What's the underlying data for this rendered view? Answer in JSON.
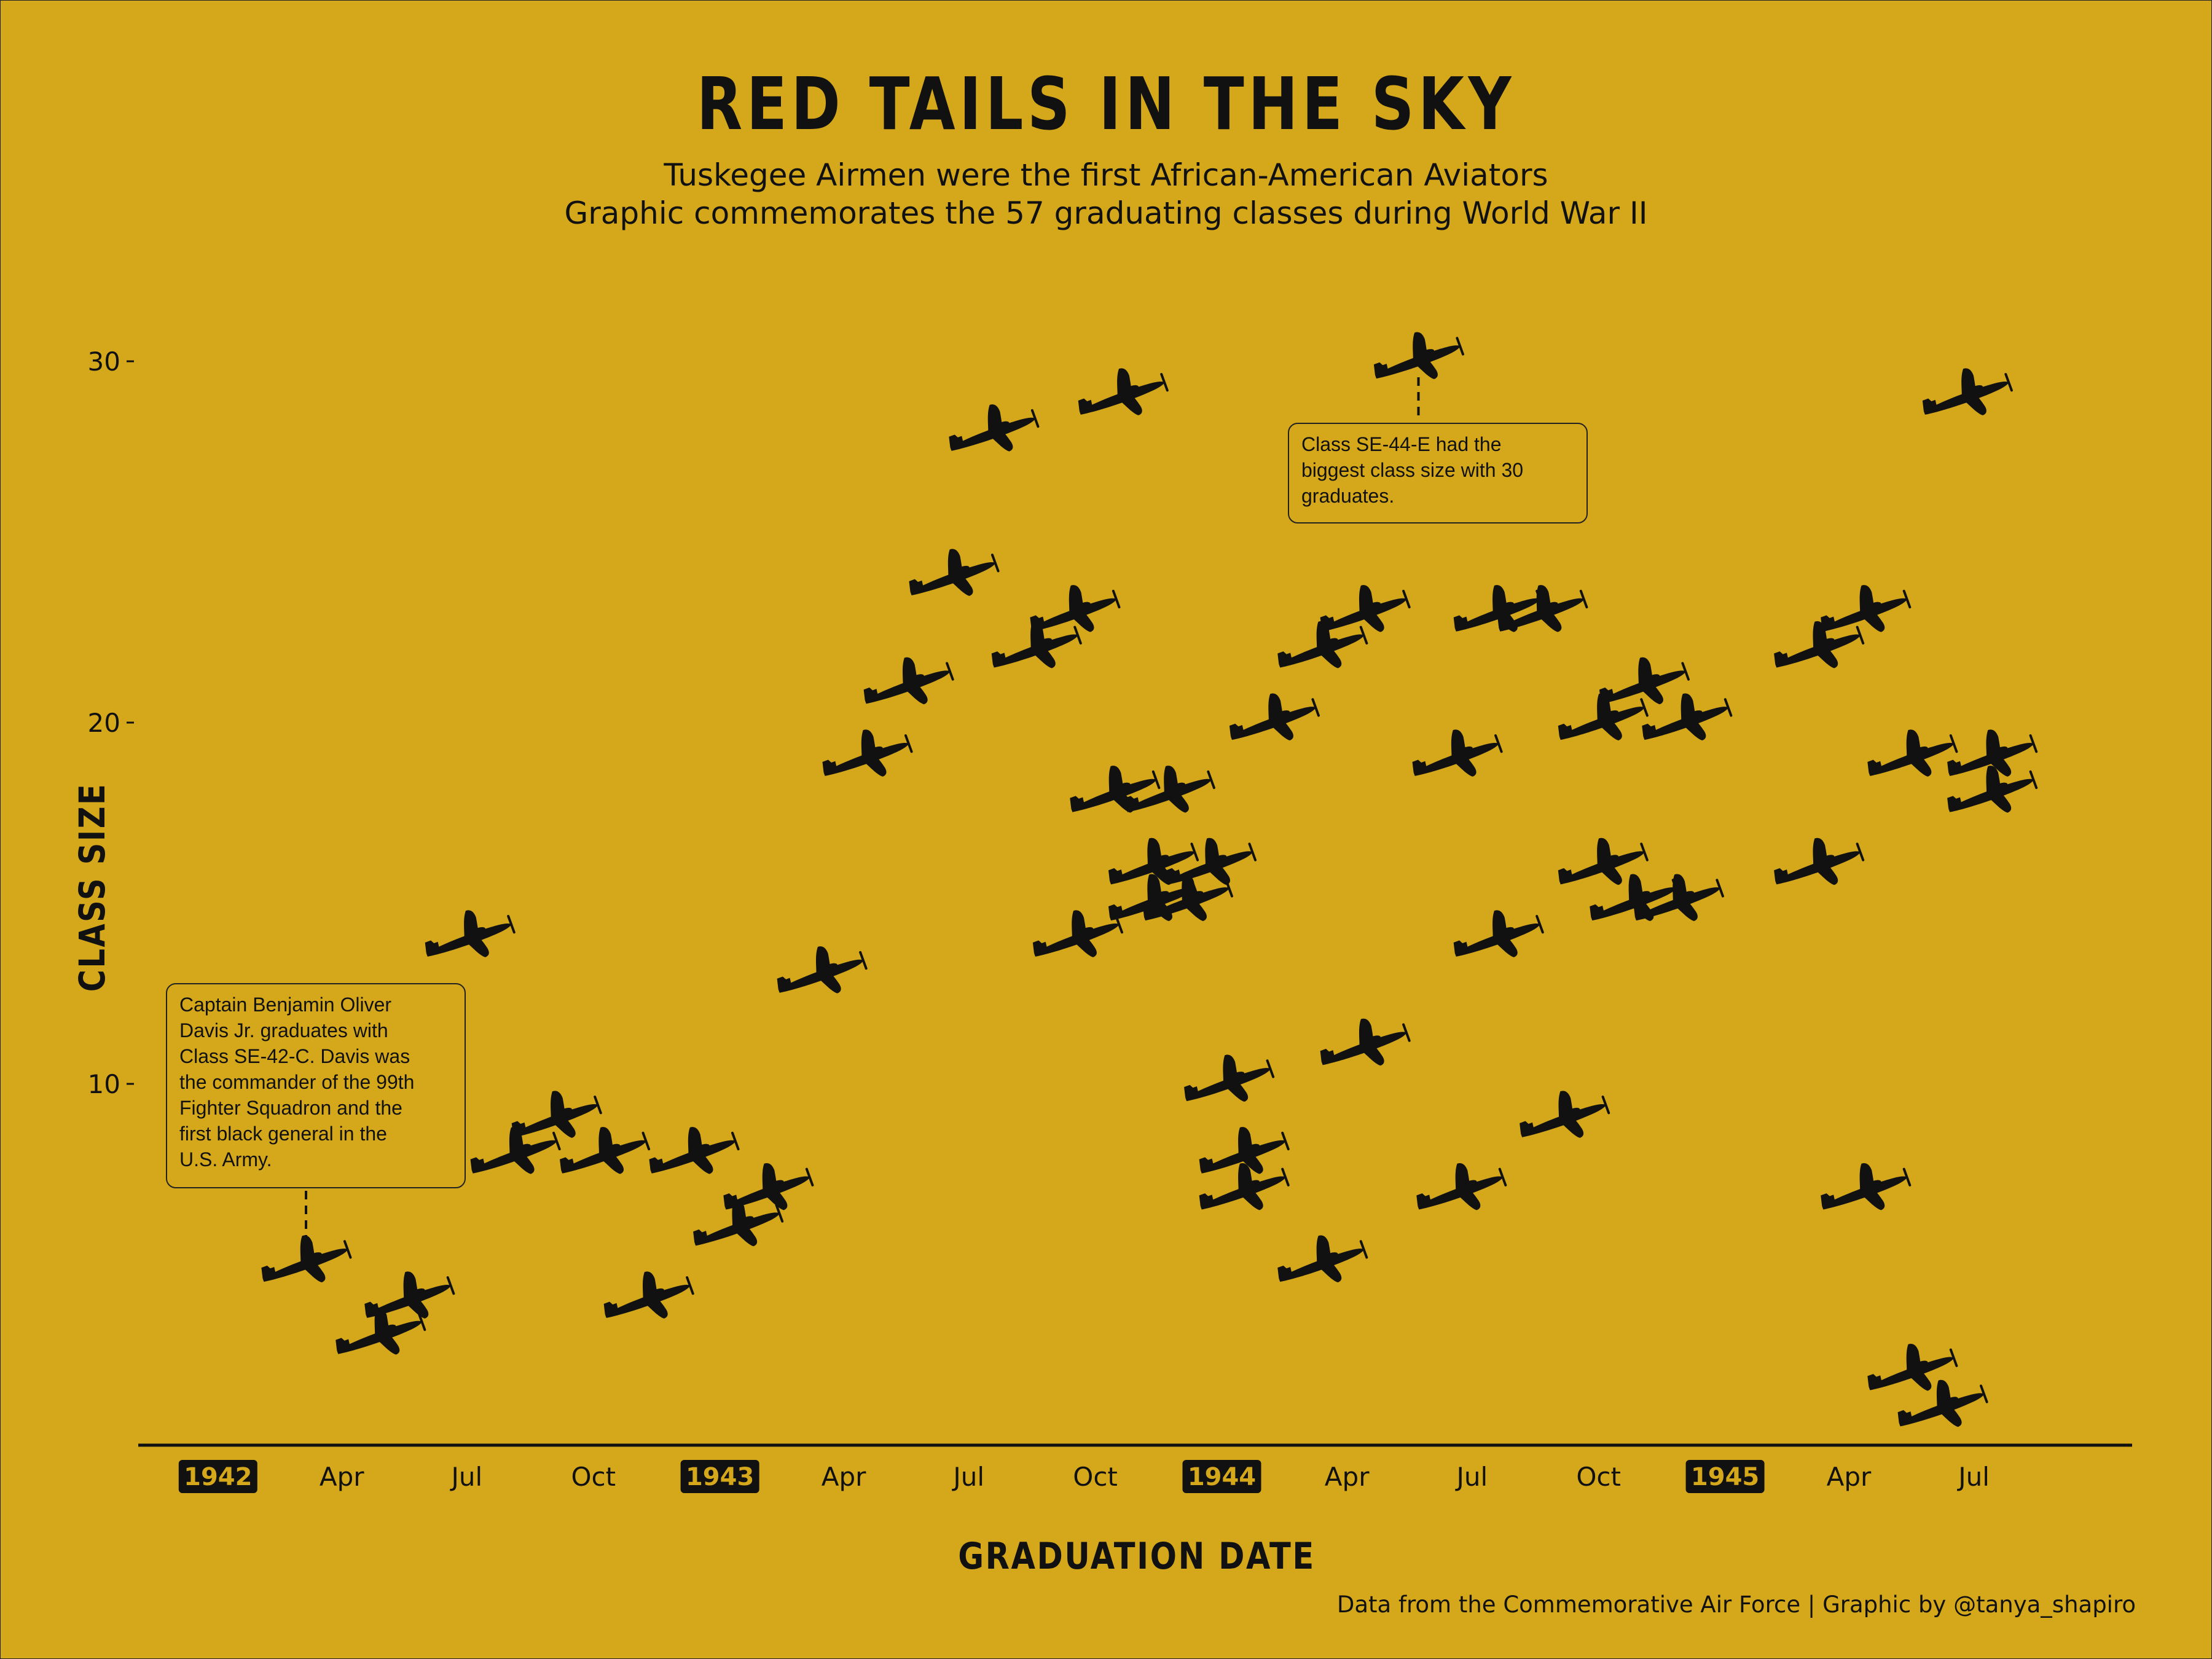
{
  "title": "RED TAILS IN THE SKY",
  "subtitle_lines": [
    "Tuskegee Airmen were the first African-American Aviators",
    "Graphic commemorates the 57 graduating classes during World War II"
  ],
  "caption": "Data from the Commemorative Air Force | Graphic by @tanya_shapiro",
  "colors": {
    "background": "#D4A81A",
    "ink": "#111111"
  },
  "marker_icon": "airplane-icon",
  "annotations": [
    {
      "text": "Captain Benjamin Oliver Davis Jr. graduates with Class SE-42-C. Davis was the commander of the 99th Fighter Squadron and the first black general in the U.S. Army.",
      "lines": [
        "Captain Benjamin Oliver",
        "Davis Jr. graduates with",
        "Class SE-42-C. Davis was",
        "the commander of the 99th",
        "Fighter Squadron and the",
        "first black general in the",
        "U.S. Army."
      ],
      "point": {
        "x": "1942-03-06",
        "y": 5
      }
    },
    {
      "text": "Class SE-44-E had the biggest class size with 30 graduates.",
      "lines": [
        "Class SE-44-E had the",
        "biggest class size with 30",
        "graduates."
      ],
      "point": {
        "x": "1944-05-23",
        "y": 30
      }
    }
  ],
  "chart_data": {
    "type": "scatter",
    "title": "RED TAILS IN THE SKY",
    "xlabel": "GRADUATION DATE",
    "ylabel": "CLASS SIZE",
    "x_ticks": [
      {
        "date": "1942-01-01",
        "label": "1942",
        "year": true
      },
      {
        "date": "1942-04-01",
        "label": "Apr",
        "year": false
      },
      {
        "date": "1942-07-01",
        "label": "Jul",
        "year": false
      },
      {
        "date": "1942-10-01",
        "label": "Oct",
        "year": false
      },
      {
        "date": "1943-01-01",
        "label": "1943",
        "year": true
      },
      {
        "date": "1943-04-01",
        "label": "Apr",
        "year": false
      },
      {
        "date": "1943-07-01",
        "label": "Jul",
        "year": false
      },
      {
        "date": "1943-10-01",
        "label": "Oct",
        "year": false
      },
      {
        "date": "1944-01-01",
        "label": "1944",
        "year": true
      },
      {
        "date": "1944-04-01",
        "label": "Apr",
        "year": false
      },
      {
        "date": "1944-07-01",
        "label": "Jul",
        "year": false
      },
      {
        "date": "1944-10-01",
        "label": "Oct",
        "year": false
      },
      {
        "date": "1945-01-01",
        "label": "1945",
        "year": true
      },
      {
        "date": "1945-04-01",
        "label": "Apr",
        "year": false
      },
      {
        "date": "1945-07-01",
        "label": "Jul",
        "year": false
      }
    ],
    "y_ticks": [
      10,
      20,
      30
    ],
    "xlim": [
      "1941-11-04",
      "1945-10-24"
    ],
    "ylim": [
      0,
      32
    ],
    "grid": false,
    "points": [
      {
        "x": "1942-03-06",
        "y": 5
      },
      {
        "x": "1942-04-29",
        "y": 3
      },
      {
        "x": "1942-05-20",
        "y": 4
      },
      {
        "x": "1942-07-03",
        "y": 14
      },
      {
        "x": "1942-08-05",
        "y": 8
      },
      {
        "x": "1942-09-04",
        "y": 9
      },
      {
        "x": "1942-10-09",
        "y": 8
      },
      {
        "x": "1942-11-10",
        "y": 4
      },
      {
        "x": "1942-12-13",
        "y": 8
      },
      {
        "x": "1943-01-14",
        "y": 6
      },
      {
        "x": "1943-02-05",
        "y": 7
      },
      {
        "x": "1943-03-16",
        "y": 13
      },
      {
        "x": "1943-04-18",
        "y": 19
      },
      {
        "x": "1943-05-18",
        "y": 21
      },
      {
        "x": "1943-06-20",
        "y": 24
      },
      {
        "x": "1943-07-19",
        "y": 28
      },
      {
        "x": "1943-08-19",
        "y": 22
      },
      {
        "x": "1943-09-16",
        "y": 23
      },
      {
        "x": "1943-09-18",
        "y": 14
      },
      {
        "x": "1943-10-15",
        "y": 18
      },
      {
        "x": "1943-10-21",
        "y": 29
      },
      {
        "x": "1943-11-12",
        "y": 16
      },
      {
        "x": "1943-11-12",
        "y": 15
      },
      {
        "x": "1943-11-24",
        "y": 18
      },
      {
        "x": "1943-12-07",
        "y": 15
      },
      {
        "x": "1943-12-24",
        "y": 16
      },
      {
        "x": "1944-01-06",
        "y": 10
      },
      {
        "x": "1944-01-17",
        "y": 8
      },
      {
        "x": "1944-01-17",
        "y": 7
      },
      {
        "x": "1944-02-08",
        "y": 20
      },
      {
        "x": "1944-03-14",
        "y": 22
      },
      {
        "x": "1944-03-14",
        "y": 5
      },
      {
        "x": "1944-04-14",
        "y": 23
      },
      {
        "x": "1944-04-14",
        "y": 11
      },
      {
        "x": "1944-05-23",
        "y": 30
      },
      {
        "x": "1944-06-20",
        "y": 19
      },
      {
        "x": "1944-06-23",
        "y": 7
      },
      {
        "x": "1944-07-20",
        "y": 14
      },
      {
        "x": "1944-07-20",
        "y": 23
      },
      {
        "x": "1944-08-21",
        "y": 23
      },
      {
        "x": "1944-09-06",
        "y": 9
      },
      {
        "x": "1944-10-04",
        "y": 20
      },
      {
        "x": "1944-10-04",
        "y": 16
      },
      {
        "x": "1944-10-27",
        "y": 15
      },
      {
        "x": "1944-11-03",
        "y": 21
      },
      {
        "x": "1944-11-28",
        "y": 15
      },
      {
        "x": "1944-12-04",
        "y": 20
      },
      {
        "x": "1945-03-10",
        "y": 16
      },
      {
        "x": "1945-03-10",
        "y": 22
      },
      {
        "x": "1945-04-13",
        "y": 7
      },
      {
        "x": "1945-04-13",
        "y": 23
      },
      {
        "x": "1945-05-17",
        "y": 19
      },
      {
        "x": "1945-05-17",
        "y": 2
      },
      {
        "x": "1945-06-08",
        "y": 1
      },
      {
        "x": "1945-06-26",
        "y": 29
      },
      {
        "x": "1945-07-14",
        "y": 19
      },
      {
        "x": "1945-07-14",
        "y": 18
      }
    ]
  }
}
